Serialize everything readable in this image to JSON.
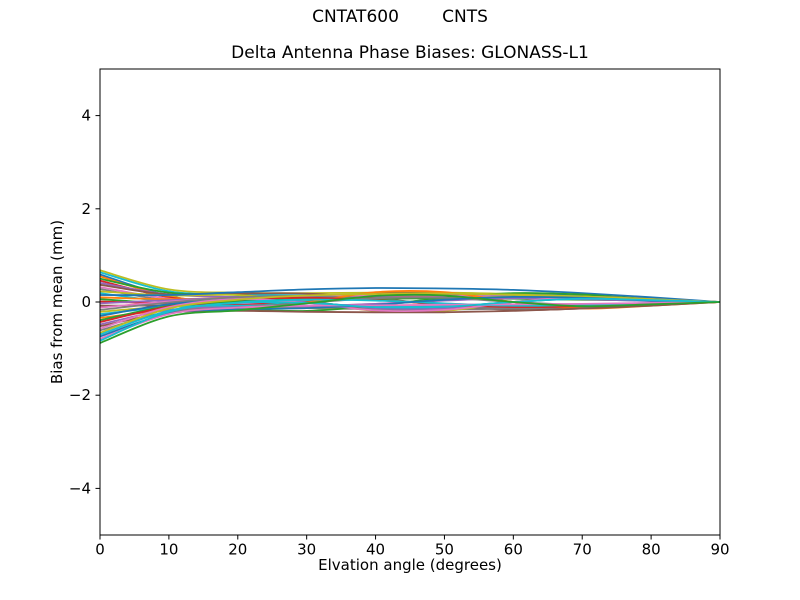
{
  "figure": {
    "suptitle": "CNTAT600        CNTS"
  },
  "chart_data": {
    "type": "line",
    "title": "Delta Antenna Phase Biases: GLONASS-L1",
    "suptitle": "CNTAT600        CNTS",
    "xlabel": "Elvation angle (degrees)",
    "ylabel": "Bias from mean (mm)",
    "xlim": [
      0,
      90
    ],
    "ylim": [
      -5,
      5
    ],
    "xticks": [
      0,
      10,
      20,
      30,
      40,
      50,
      60,
      70,
      80,
      90
    ],
    "yticks": [
      -4,
      -2,
      0,
      2,
      4
    ],
    "ytick_labels": [
      "−4",
      "−2",
      "0",
      "2",
      "4"
    ],
    "grid": false,
    "legend": false,
    "line_width": 1.8,
    "axes_color": "#000000",
    "background": "#ffffff",
    "x": [
      0,
      10,
      20,
      30,
      40,
      50,
      60,
      70,
      80,
      90
    ],
    "series": [
      {
        "name": "s01",
        "color": "#bcbd22",
        "values": [
          0.68,
          0.27,
          0.2,
          0.19,
          0.2,
          0.2,
          0.17,
          0.13,
          0.07,
          0
        ]
      },
      {
        "name": "s02",
        "color": "#17becf",
        "values": [
          0.64,
          0.23,
          0.16,
          0.14,
          0.06,
          -0.05,
          -0.12,
          -0.1,
          -0.04,
          0
        ]
      },
      {
        "name": "s03",
        "color": "#1f77b4",
        "values": [
          0.59,
          0.13,
          -0.07,
          -0.13,
          -0.06,
          0.07,
          0.15,
          0.13,
          0.04,
          0
        ]
      },
      {
        "name": "s04",
        "color": "#ff7f0e",
        "values": [
          0.55,
          0.12,
          -0.02,
          -0.09,
          -0.11,
          -0.12,
          -0.1,
          -0.08,
          -0.04,
          0
        ]
      },
      {
        "name": "s05",
        "color": "#2ca02c",
        "values": [
          0.5,
          0.2,
          0.15,
          0.02,
          -0.15,
          -0.15,
          0.0,
          0.1,
          0.05,
          0
        ]
      },
      {
        "name": "s06",
        "color": "#d62728",
        "values": [
          0.46,
          0.1,
          -0.03,
          0.01,
          0.12,
          0.12,
          0.0,
          -0.08,
          -0.04,
          0
        ]
      },
      {
        "name": "s07",
        "color": "#9467bd",
        "values": [
          0.41,
          0.16,
          0.11,
          0.1,
          0.1,
          0.1,
          0.09,
          0.06,
          0.03,
          0
        ]
      },
      {
        "name": "s08",
        "color": "#8c564b",
        "values": [
          0.37,
          0.16,
          0.18,
          0.18,
          0.08,
          -0.07,
          -0.17,
          -0.14,
          -0.05,
          0
        ]
      },
      {
        "name": "s09",
        "color": "#e377c2",
        "values": [
          0.32,
          0.07,
          -0.04,
          -0.08,
          -0.04,
          0.04,
          0.09,
          0.08,
          0.03,
          0
        ]
      },
      {
        "name": "s10",
        "color": "#7f7f7f",
        "values": [
          0.28,
          0.03,
          -0.07,
          -0.13,
          -0.15,
          -0.16,
          -0.14,
          -0.1,
          -0.05,
          0
        ]
      },
      {
        "name": "s11",
        "color": "#bcbd22",
        "values": [
          0.23,
          0.14,
          0.15,
          0.01,
          -0.19,
          -0.19,
          0.0,
          0.12,
          0.07,
          0
        ]
      },
      {
        "name": "s12",
        "color": "#17becf",
        "values": [
          0.19,
          0.0,
          -0.08,
          0.01,
          0.16,
          0.15,
          0.0,
          -0.1,
          -0.05,
          0
        ]
      },
      {
        "name": "s13",
        "color": "#1f77b4",
        "values": [
          0.15,
          0.15,
          0.21,
          0.27,
          0.3,
          0.29,
          0.26,
          0.19,
          0.1,
          0
        ]
      },
      {
        "name": "s14",
        "color": "#ff7f0e",
        "values": [
          0.1,
          0.06,
          0.09,
          0.09,
          0.04,
          -0.04,
          -0.09,
          -0.08,
          -0.03,
          0
        ]
      },
      {
        "name": "s15",
        "color": "#2ca02c",
        "values": [
          0.06,
          -0.04,
          -0.15,
          -0.19,
          -0.08,
          0.09,
          0.19,
          0.16,
          0.06,
          0
        ]
      },
      {
        "name": "s16",
        "color": "#d62728",
        "values": [
          0.01,
          -0.03,
          -0.06,
          -0.09,
          -0.1,
          -0.1,
          -0.09,
          -0.06,
          -0.03,
          0
        ]
      },
      {
        "name": "s17",
        "color": "#9467bd",
        "values": [
          -0.03,
          0.04,
          0.08,
          0.0,
          -0.13,
          -0.13,
          0.0,
          0.08,
          0.05,
          0
        ]
      },
      {
        "name": "s18",
        "color": "#8c564b",
        "values": [
          -0.08,
          -0.08,
          -0.12,
          0.0,
          0.17,
          0.17,
          0.0,
          -0.11,
          -0.06,
          0
        ]
      },
      {
        "name": "s19",
        "color": "#e377c2",
        "values": [
          -0.12,
          0.01,
          0.08,
          0.12,
          0.14,
          0.14,
          0.12,
          0.09,
          0.05,
          0
        ]
      },
      {
        "name": "s20",
        "color": "#7f7f7f",
        "values": [
          -0.17,
          -0.01,
          0.1,
          0.13,
          0.06,
          -0.06,
          -0.14,
          -0.11,
          -0.04,
          0
        ]
      },
      {
        "name": "s21",
        "color": "#bcbd22",
        "values": [
          -0.21,
          -0.1,
          -0.12,
          -0.13,
          -0.06,
          0.05,
          0.12,
          0.1,
          0.04,
          0
        ]
      },
      {
        "name": "s22",
        "color": "#17becf",
        "values": [
          -0.26,
          -0.11,
          -0.08,
          -0.08,
          -0.08,
          -0.08,
          -0.07,
          -0.05,
          -0.03,
          0
        ]
      },
      {
        "name": "s23",
        "color": "#1f77b4",
        "values": [
          -0.3,
          -0.05,
          0.04,
          -0.01,
          -0.11,
          -0.1,
          0.0,
          0.07,
          0.04,
          0
        ]
      },
      {
        "name": "s24",
        "color": "#ff7f0e",
        "values": [
          -0.34,
          -0.18,
          -0.17,
          -0.01,
          0.21,
          0.21,
          0.0,
          -0.14,
          -0.08,
          0
        ]
      },
      {
        "name": "s25",
        "color": "#2ca02c",
        "values": [
          -0.39,
          -0.09,
          0.01,
          0.06,
          0.07,
          0.08,
          0.07,
          0.05,
          0.03,
          0
        ]
      },
      {
        "name": "s26",
        "color": "#d62728",
        "values": [
          -0.43,
          -0.1,
          0.05,
          0.09,
          0.04,
          -0.05,
          -0.11,
          -0.09,
          -0.03,
          0
        ]
      },
      {
        "name": "s27",
        "color": "#9467bd",
        "values": [
          -0.48,
          -0.17,
          -0.11,
          -0.09,
          -0.04,
          0.03,
          0.08,
          0.06,
          0.02,
          0
        ]
      },
      {
        "name": "s28",
        "color": "#8c564b",
        "values": [
          -0.52,
          -0.23,
          -0.19,
          -0.21,
          -0.22,
          -0.22,
          -0.19,
          -0.14,
          -0.08,
          0
        ]
      },
      {
        "name": "s29",
        "color": "#e377c2",
        "values": [
          -0.57,
          -0.11,
          0.06,
          -0.02,
          -0.18,
          -0.17,
          0.0,
          0.11,
          0.06,
          0
        ]
      },
      {
        "name": "s30",
        "color": "#7f7f7f",
        "values": [
          -0.61,
          -0.21,
          -0.12,
          -0.02,
          0.08,
          0.09,
          0.0,
          -0.06,
          -0.03,
          0
        ]
      },
      {
        "name": "s31",
        "color": "#bcbd22",
        "values": [
          -0.66,
          -0.14,
          0.05,
          0.14,
          0.17,
          0.18,
          0.16,
          0.12,
          0.06,
          0
        ]
      },
      {
        "name": "s32",
        "color": "#17becf",
        "values": [
          -0.7,
          -0.19,
          -0.01,
          0.05,
          0.03,
          -0.03,
          -0.08,
          -0.06,
          -0.02,
          0
        ]
      },
      {
        "name": "s33",
        "color": "#1f77b4",
        "values": [
          -0.74,
          -0.25,
          -0.16,
          -0.13,
          -0.06,
          0.05,
          0.11,
          0.09,
          0.03,
          0
        ]
      },
      {
        "name": "s34",
        "color": "#e377c2",
        "values": [
          -0.79,
          -0.26,
          -0.12,
          -0.08,
          -0.07,
          -0.06,
          -0.05,
          -0.04,
          -0.02,
          0
        ]
      },
      {
        "name": "s35",
        "color": "#17becf",
        "values": [
          -0.83,
          -0.21,
          -0.02,
          -0.02,
          -0.11,
          -0.1,
          0.0,
          0.07,
          0.04,
          0
        ]
      },
      {
        "name": "s36",
        "color": "#2ca02c",
        "values": [
          -0.88,
          -0.31,
          -0.18,
          -0.03,
          0.13,
          0.14,
          0.0,
          -0.09,
          -0.05,
          0
        ]
      }
    ]
  }
}
